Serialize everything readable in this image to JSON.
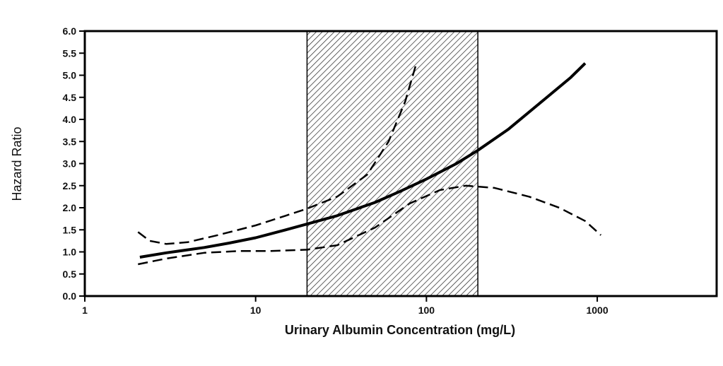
{
  "chart_data": {
    "type": "line",
    "title": "",
    "xlabel": "Urinary Albumin Concentration (mg/L)",
    "ylabel": "Hazard Ratio",
    "x_scale": "log",
    "xlim": [
      1,
      5000
    ],
    "ylim": [
      0.0,
      6.0
    ],
    "x_ticks": [
      1,
      10,
      100,
      1000
    ],
    "x_tick_labels": [
      "1",
      "10",
      "100",
      "1000"
    ],
    "y_ticks": [
      0.0,
      0.5,
      1.0,
      1.5,
      2.0,
      2.5,
      3.0,
      3.5,
      4.0,
      4.5,
      5.0,
      5.5,
      6.0
    ],
    "y_tick_labels": [
      "0.0",
      "0.5",
      "1.0",
      "1.5",
      "2.0",
      "2.5",
      "3.0",
      "3.5",
      "4.0",
      "4.5",
      "5.0",
      "5.5",
      "6.0"
    ],
    "grid": false,
    "shaded_region": {
      "x_start": 20,
      "x_end": 200,
      "pattern": "diagonal-hatch"
    },
    "series": [
      {
        "style": "solid",
        "x": [
          2.1,
          3,
          5,
          7,
          10,
          15,
          20,
          30,
          50,
          70,
          100,
          150,
          200,
          300,
          500,
          700,
          850
        ],
        "y": [
          0.88,
          0.98,
          1.1,
          1.2,
          1.32,
          1.5,
          1.63,
          1.82,
          2.12,
          2.37,
          2.65,
          3.0,
          3.3,
          3.77,
          4.48,
          4.95,
          5.27
        ]
      },
      {
        "style": "dashed",
        "x": [
          2.05,
          2.4,
          3,
          4,
          6,
          10,
          15,
          20,
          30,
          45,
          60,
          75,
          87
        ],
        "y": [
          1.45,
          1.25,
          1.18,
          1.22,
          1.38,
          1.6,
          1.82,
          1.98,
          2.25,
          2.75,
          3.5,
          4.4,
          5.25
        ]
      },
      {
        "style": "dashed",
        "x": [
          2.05,
          3,
          5,
          8,
          12,
          20,
          30,
          50,
          80,
          120,
          170,
          250,
          400,
          600,
          850,
          1050
        ],
        "y": [
          0.72,
          0.85,
          0.98,
          1.02,
          1.02,
          1.05,
          1.15,
          1.55,
          2.1,
          2.4,
          2.5,
          2.45,
          2.25,
          2.0,
          1.7,
          1.38
        ]
      }
    ]
  }
}
